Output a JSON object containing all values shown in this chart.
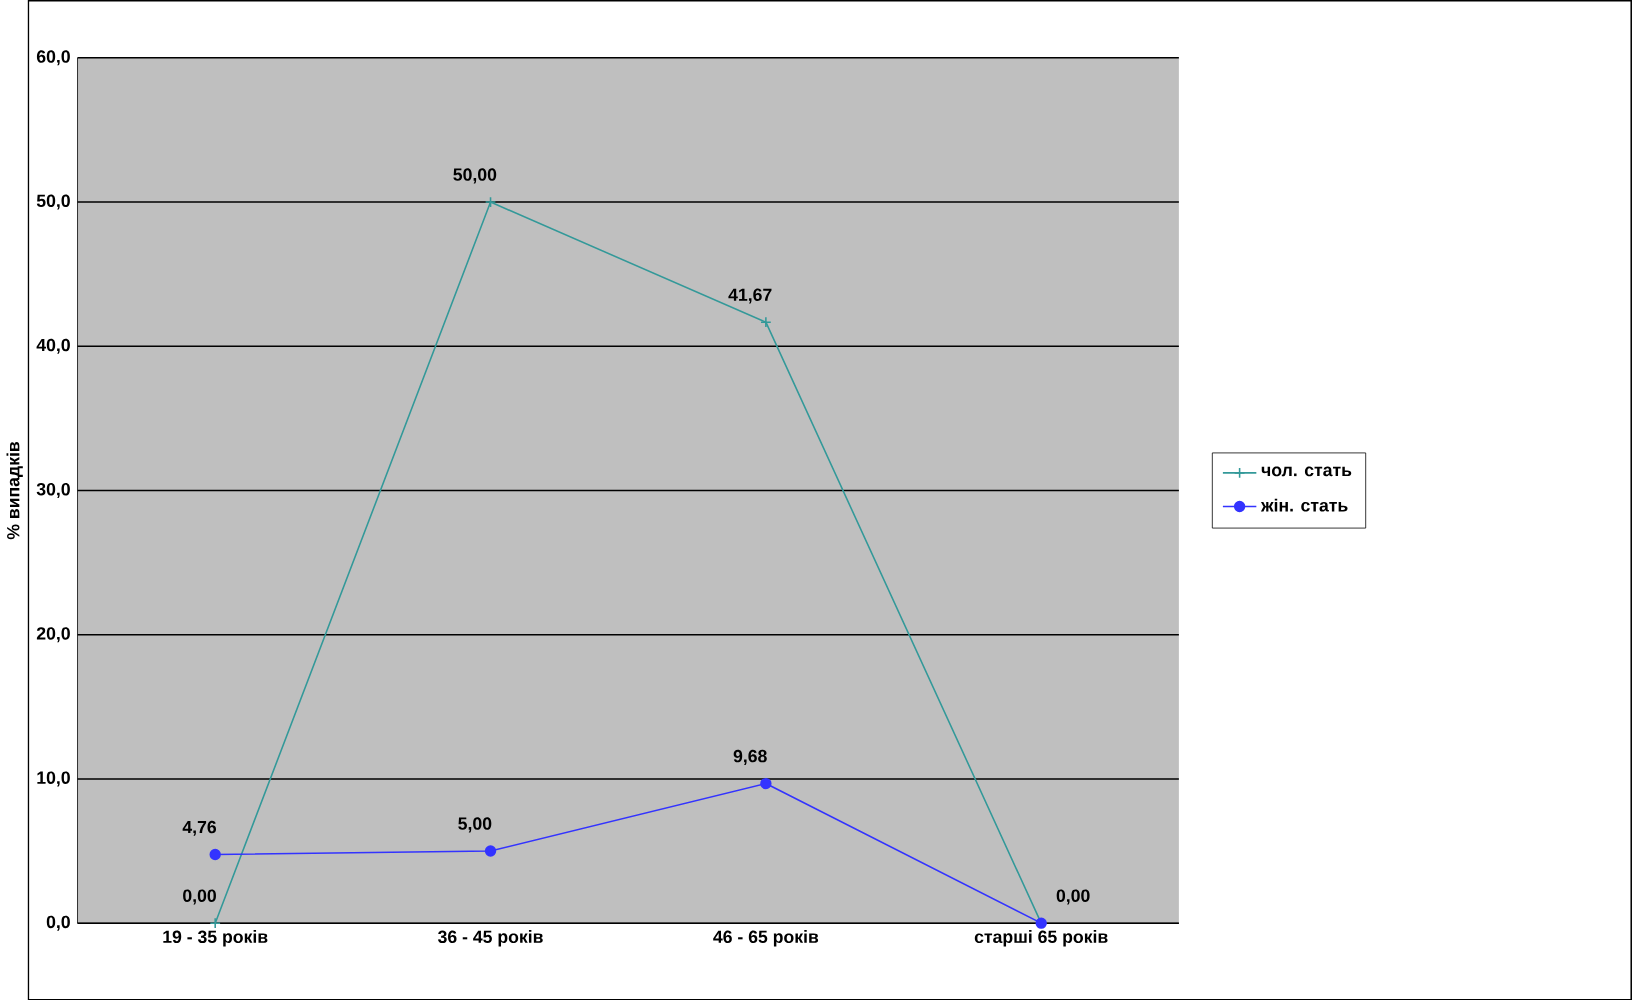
{
  "chart_data": {
    "type": "line",
    "ylabel": "% випадків",
    "categories": [
      "19 - 35 років",
      "36 - 45 років",
      "46 - 65 років",
      "старші 65 років"
    ],
    "series": [
      {
        "name": "чол. стать",
        "color": "#339999",
        "marker": "cross",
        "values": [
          0,
          50,
          41.67,
          0
        ],
        "value_labels": [
          "0,00",
          "50,00",
          "41,67",
          "0,00"
        ]
      },
      {
        "name": "жін. стать",
        "color": "#3333ff",
        "marker": "circle",
        "values": [
          4.76,
          5,
          9.68,
          0
        ],
        "value_labels": [
          "4,76",
          "5,00",
          "9,68",
          null
        ]
      }
    ],
    "ylim": [
      0,
      60
    ],
    "yticks": [
      {
        "value": 0,
        "label": "0,0"
      },
      {
        "value": 10,
        "label": "10,0"
      },
      {
        "value": 20,
        "label": "20,0"
      },
      {
        "value": 30,
        "label": "30,0"
      },
      {
        "value": 40,
        "label": "40,0"
      },
      {
        "value": 50,
        "label": "50,0"
      },
      {
        "value": 60,
        "label": "60,0"
      }
    ],
    "grid": "y",
    "legend": "right"
  }
}
